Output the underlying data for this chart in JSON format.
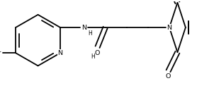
{
  "bg": "#ffffff",
  "lc": "#000000",
  "lw": 1.3,
  "fs": 6.8,
  "fss": 5.5,
  "xlim": [
    -0.05,
    3.05
  ],
  "ylim": [
    0.0,
    1.25
  ],
  "BL": 0.38
}
